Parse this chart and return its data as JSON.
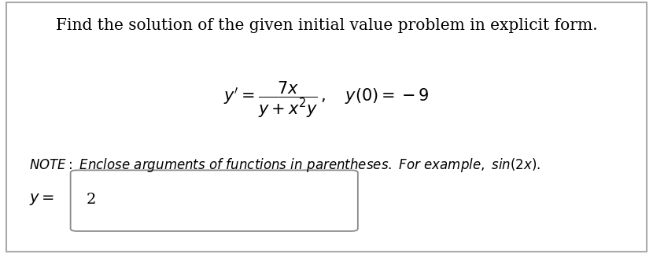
{
  "background_color": "#ffffff",
  "outer_border_color": "#aaaaaa",
  "title_text": "Find the solution of the given initial value problem in explicit form.",
  "note_text": "NOTE: Enclose arguments of functions in parentheses. For example, $sin(2x)$.",
  "answer_prefix": "$y = $",
  "answer_value": "2",
  "title_fontsize": 14.5,
  "eq_fontsize": 15,
  "note_fontsize": 12,
  "answer_fontsize": 14,
  "fig_width": 8.3,
  "fig_height": 3.23,
  "dpi": 100
}
